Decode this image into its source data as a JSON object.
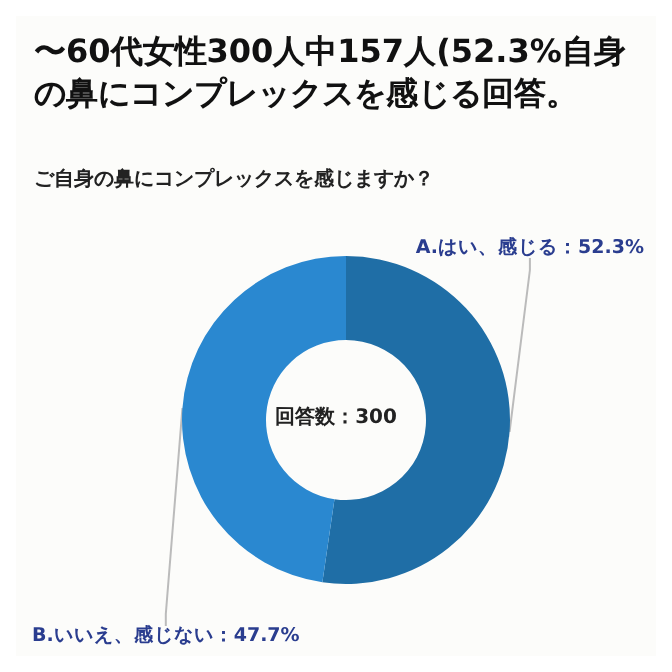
{
  "chart_data": {
    "type": "donut",
    "title": "〜60代女性300人中157人(52.3%自身の鼻にコンプレックスを感じる回答。",
    "subtitle": "ご自身の鼻にコンプレックスを感じますか？",
    "categories": [
      "A.はい、感じる",
      "B.いいえ、感じない"
    ],
    "values": [
      52.3,
      47.7
    ],
    "colors": [
      "#1f6ea6",
      "#2a88d0"
    ],
    "value_labels": [
      "52.3%",
      "47.7%"
    ],
    "annotations": [
      "回答数：300"
    ],
    "legend": false
  }
}
